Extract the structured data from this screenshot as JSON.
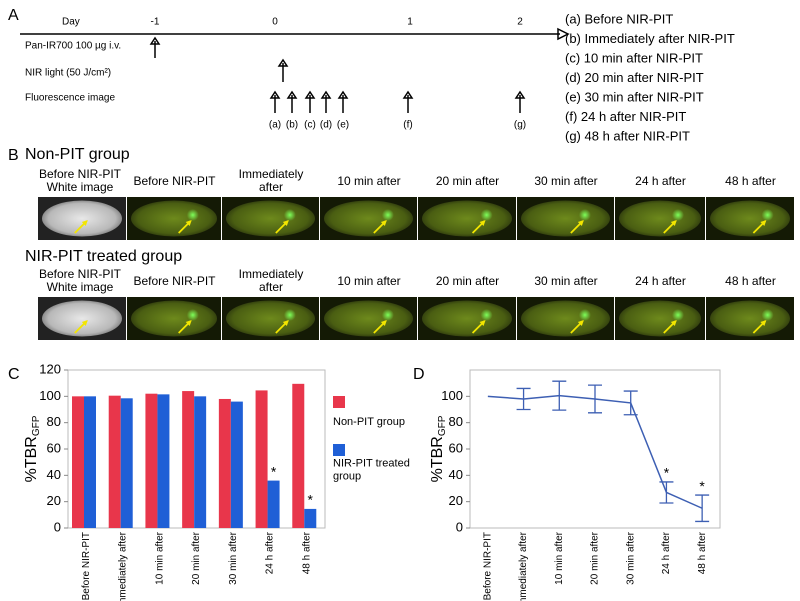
{
  "panel_labels": [
    "A",
    "B",
    "C",
    "D"
  ],
  "timeline": {
    "day_label": "Day",
    "days": [
      "-1",
      "0",
      "1",
      "2"
    ],
    "rows": [
      "Pan-IR700 100 µg i.v.",
      "NIR light (50 J/cm²)",
      "Fluorescence image"
    ],
    "image_labels": [
      "(a)",
      "(b)",
      "(c)",
      "(d)",
      "(e)",
      "(f)",
      "(g)"
    ],
    "legend": [
      "(a) Before NIR-PIT",
      "(b) Immediately after NIR-PIT",
      "(c) 10 min after NIR-PIT",
      "(d) 20 min after NIR-PIT",
      "(e) 30 min after NIR-PIT",
      "(f) 24 h after NIR-PIT",
      "(g) 48 h after NIR-PIT"
    ]
  },
  "image_panels": [
    {
      "title": "Non-PIT group",
      "headers": [
        "Before NIR-PIT White image",
        "Before NIR-PIT",
        "Immediately after",
        "10 min after",
        "20 min after",
        "30 min after",
        "24 h after",
        "48 h after"
      ]
    },
    {
      "title": "NIR-PIT treated group",
      "headers": [
        "Before NIR-PIT White image",
        "Before NIR-PIT",
        "Immediately after",
        "10 min after",
        "20 min after",
        "30 min after",
        "24 h after",
        "48 h after"
      ]
    }
  ],
  "chart_data": [
    {
      "type": "bar",
      "y_label": "%TBR",
      "y_label_subscript": "GFP",
      "categories": [
        "Before NIR-PIT",
        "Immediately after",
        "10 min after",
        "20 min after",
        "30 min after",
        "24 h after",
        "48 h after"
      ],
      "series": [
        {
          "name": "Non-PIT group",
          "color": "#e8364b",
          "values": [
            100,
            100.5,
            102,
            104,
            98,
            104.5,
            109.5
          ]
        },
        {
          "name": "NIR-PIT treated group",
          "color": "#1f5fd6",
          "values": [
            100,
            98.5,
            101.5,
            100,
            96,
            36,
            14.5
          ]
        }
      ],
      "significance_marks": [
        null,
        null,
        null,
        null,
        null,
        "*",
        "*"
      ],
      "ylim": [
        0,
        120
      ],
      "yticks": [
        0,
        20,
        40,
        60,
        80,
        100,
        120
      ]
    },
    {
      "type": "line",
      "y_label": "%TBR",
      "y_label_subscript": "GFP",
      "categories": [
        "Before NIR-PIT",
        "Immediately after",
        "10 min after",
        "20 min after",
        "30 min after",
        "24 h after",
        "48 h after"
      ],
      "values": [
        100,
        98,
        100.5,
        98,
        95,
        27,
        15
      ],
      "errors": [
        null,
        8,
        11,
        10.5,
        9,
        8,
        10
      ],
      "color": "#3d5fb3",
      "significance_marks": [
        null,
        null,
        null,
        null,
        null,
        "*",
        "*"
      ],
      "ylim": [
        0,
        120
      ],
      "yticks": [
        0,
        20,
        40,
        60,
        80,
        100
      ]
    }
  ]
}
